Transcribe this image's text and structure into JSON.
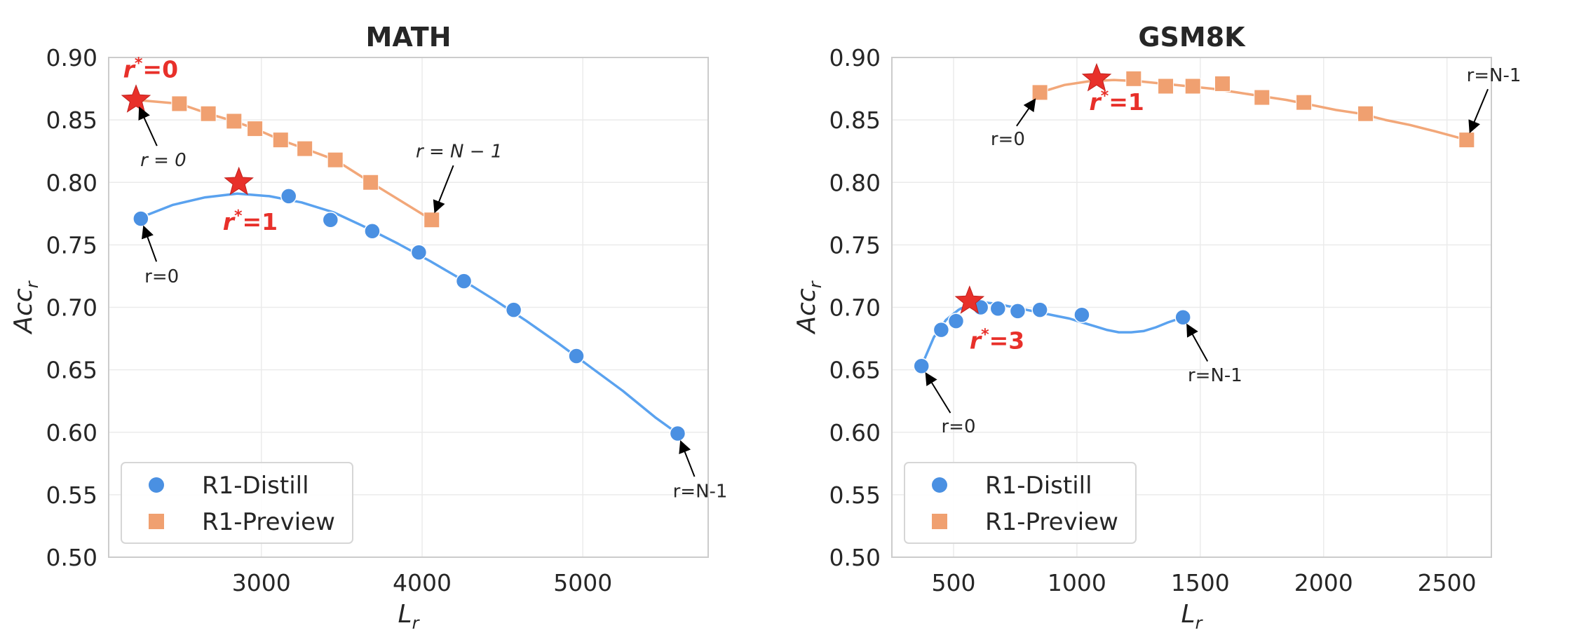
{
  "colors": {
    "distill": "#4a90e2",
    "distill_line": "#5aa2ef",
    "preview": "#f0a070",
    "preview_line": "#f2a779",
    "star": "#e8302a",
    "grid": "#ebebeb",
    "frame": "#cccccc"
  },
  "chart_data": [
    {
      "type": "scatter",
      "title": "MATH",
      "xlabel_base": "L",
      "xlabel_sub": "r",
      "ylabel_base": "Acc",
      "ylabel_sub": "r",
      "xlim": [
        2050,
        5780
      ],
      "ylim": [
        0.5,
        0.9
      ],
      "xticks": [
        3000,
        4000,
        5000
      ],
      "xtick_labels": [
        "3000",
        "4000",
        "5000"
      ],
      "yticks": [
        0.5,
        0.55,
        0.6,
        0.65,
        0.7,
        0.75,
        0.8,
        0.85,
        0.9
      ],
      "ytick_labels": [
        "0.50",
        "0.55",
        "0.60",
        "0.65",
        "0.70",
        "0.75",
        "0.80",
        "0.85",
        "0.90"
      ],
      "grid": true,
      "legend": "lower-left",
      "series": [
        {
          "name": "R1-Distill",
          "marker": "circle",
          "x": [
            2250,
            3170,
            3430,
            3690,
            3980,
            4260,
            4570,
            4960,
            5590
          ],
          "y": [
            0.771,
            0.789,
            0.77,
            0.761,
            0.744,
            0.721,
            0.698,
            0.661,
            0.599
          ],
          "fit_x": [
            2250,
            2450,
            2650,
            2850,
            3050,
            3250,
            3450,
            3650,
            3850,
            4050,
            4250,
            4450,
            4650,
            4850,
            5050,
            5250,
            5450,
            5590
          ],
          "fit_y": [
            0.772,
            0.782,
            0.788,
            0.791,
            0.789,
            0.784,
            0.776,
            0.764,
            0.751,
            0.737,
            0.722,
            0.706,
            0.689,
            0.671,
            0.652,
            0.633,
            0.612,
            0.599
          ]
        },
        {
          "name": "R1-Preview",
          "marker": "square",
          "x": [
            2490,
            2670,
            2830,
            2960,
            3120,
            3270,
            3460,
            3680,
            4060
          ],
          "y": [
            0.863,
            0.855,
            0.849,
            0.843,
            0.834,
            0.827,
            0.818,
            0.8,
            0.77
          ],
          "fit_x": [
            2220,
            2490,
            2670,
            2830,
            2960,
            3120,
            3270,
            3460,
            3680,
            4060
          ],
          "fit_y": [
            0.866,
            0.863,
            0.855,
            0.849,
            0.843,
            0.834,
            0.827,
            0.818,
            0.8,
            0.77
          ]
        }
      ],
      "stars": [
        {
          "x": 2220,
          "y": 0.866,
          "label": "=0",
          "label_x": 2140,
          "label_y": 0.884
        },
        {
          "x": 2860,
          "y": 0.8,
          "label": "=1",
          "label_x": 2760,
          "label_y": 0.762
        }
      ],
      "annotations": [
        {
          "text": "r = 0",
          "italic": true,
          "x": 2220,
          "y": 0.866,
          "tx": 2390,
          "ty": 0.818
        },
        {
          "text": "r = N − 1",
          "italic": true,
          "x": 4060,
          "y": 0.77,
          "tx": 4230,
          "ty": 0.825
        },
        {
          "text": "r=0",
          "italic": false,
          "x": 2250,
          "y": 0.771,
          "tx": 2380,
          "ty": 0.725
        },
        {
          "text": "r=N-1",
          "italic": false,
          "x": 5590,
          "y": 0.599,
          "tx": 5730,
          "ty": 0.553
        }
      ]
    },
    {
      "type": "scatter",
      "title": "GSM8K",
      "xlabel_base": "L",
      "xlabel_sub": "r",
      "ylabel_base": "Acc",
      "ylabel_sub": "r",
      "xlim": [
        250,
        2680
      ],
      "ylim": [
        0.5,
        0.9
      ],
      "xticks": [
        500,
        1000,
        1500,
        2000,
        2500
      ],
      "xtick_labels": [
        "500",
        "1000",
        "1500",
        "2000",
        "2500"
      ],
      "yticks": [
        0.5,
        0.55,
        0.6,
        0.65,
        0.7,
        0.75,
        0.8,
        0.85,
        0.9
      ],
      "ytick_labels": [
        "0.50",
        "0.55",
        "0.60",
        "0.65",
        "0.70",
        "0.75",
        "0.80",
        "0.85",
        "0.90"
      ],
      "grid": true,
      "legend": "lower-left",
      "series": [
        {
          "name": "R1-Distill",
          "marker": "circle",
          "x": [
            370,
            450,
            510,
            610,
            680,
            760,
            850,
            1020,
            1430
          ],
          "y": [
            0.653,
            0.682,
            0.689,
            0.7,
            0.699,
            0.697,
            0.698,
            0.694,
            0.692
          ],
          "fit_x": [
            370,
            420,
            470,
            520,
            570,
            620,
            670,
            720,
            770,
            820,
            870,
            920,
            970,
            1020,
            1070,
            1120,
            1170,
            1220,
            1270,
            1320,
            1370,
            1430
          ],
          "fit_y": [
            0.653,
            0.676,
            0.69,
            0.698,
            0.703,
            0.704,
            0.703,
            0.701,
            0.699,
            0.697,
            0.695,
            0.693,
            0.691,
            0.688,
            0.685,
            0.682,
            0.68,
            0.68,
            0.681,
            0.684,
            0.688,
            0.692
          ]
        },
        {
          "name": "R1-Preview",
          "marker": "square",
          "x": [
            850,
            1230,
            1360,
            1470,
            1590,
            1750,
            1920,
            2170,
            2580
          ],
          "y": [
            0.872,
            0.883,
            0.877,
            0.877,
            0.879,
            0.868,
            0.864,
            0.855,
            0.834
          ],
          "fit_x": [
            850,
            950,
            1050,
            1150,
            1250,
            1350,
            1450,
            1550,
            1650,
            1750,
            1850,
            1950,
            2050,
            2150,
            2250,
            2350,
            2450,
            2580
          ],
          "fit_y": [
            0.872,
            0.878,
            0.881,
            0.882,
            0.881,
            0.879,
            0.877,
            0.875,
            0.872,
            0.869,
            0.866,
            0.862,
            0.858,
            0.855,
            0.85,
            0.846,
            0.841,
            0.834
          ]
        }
      ],
      "stars": [
        {
          "x": 1080,
          "y": 0.883,
          "label": "=1",
          "label_x": 1050,
          "label_y": 0.858
        },
        {
          "x": 565,
          "y": 0.705,
          "label": "=3",
          "label_x": 565,
          "label_y": 0.667
        }
      ],
      "annotations": [
        {
          "text": "r=0",
          "italic": false,
          "x": 850,
          "y": 0.872,
          "tx": 720,
          "ty": 0.835
        },
        {
          "text": "r=N-1",
          "italic": false,
          "x": 2580,
          "y": 0.834,
          "tx": 2690,
          "ty": 0.886
        },
        {
          "text": "r=0",
          "italic": false,
          "x": 370,
          "y": 0.653,
          "tx": 520,
          "ty": 0.605
        },
        {
          "text": "r=N-1",
          "italic": false,
          "x": 1430,
          "y": 0.692,
          "tx": 1560,
          "ty": 0.646
        }
      ]
    }
  ]
}
